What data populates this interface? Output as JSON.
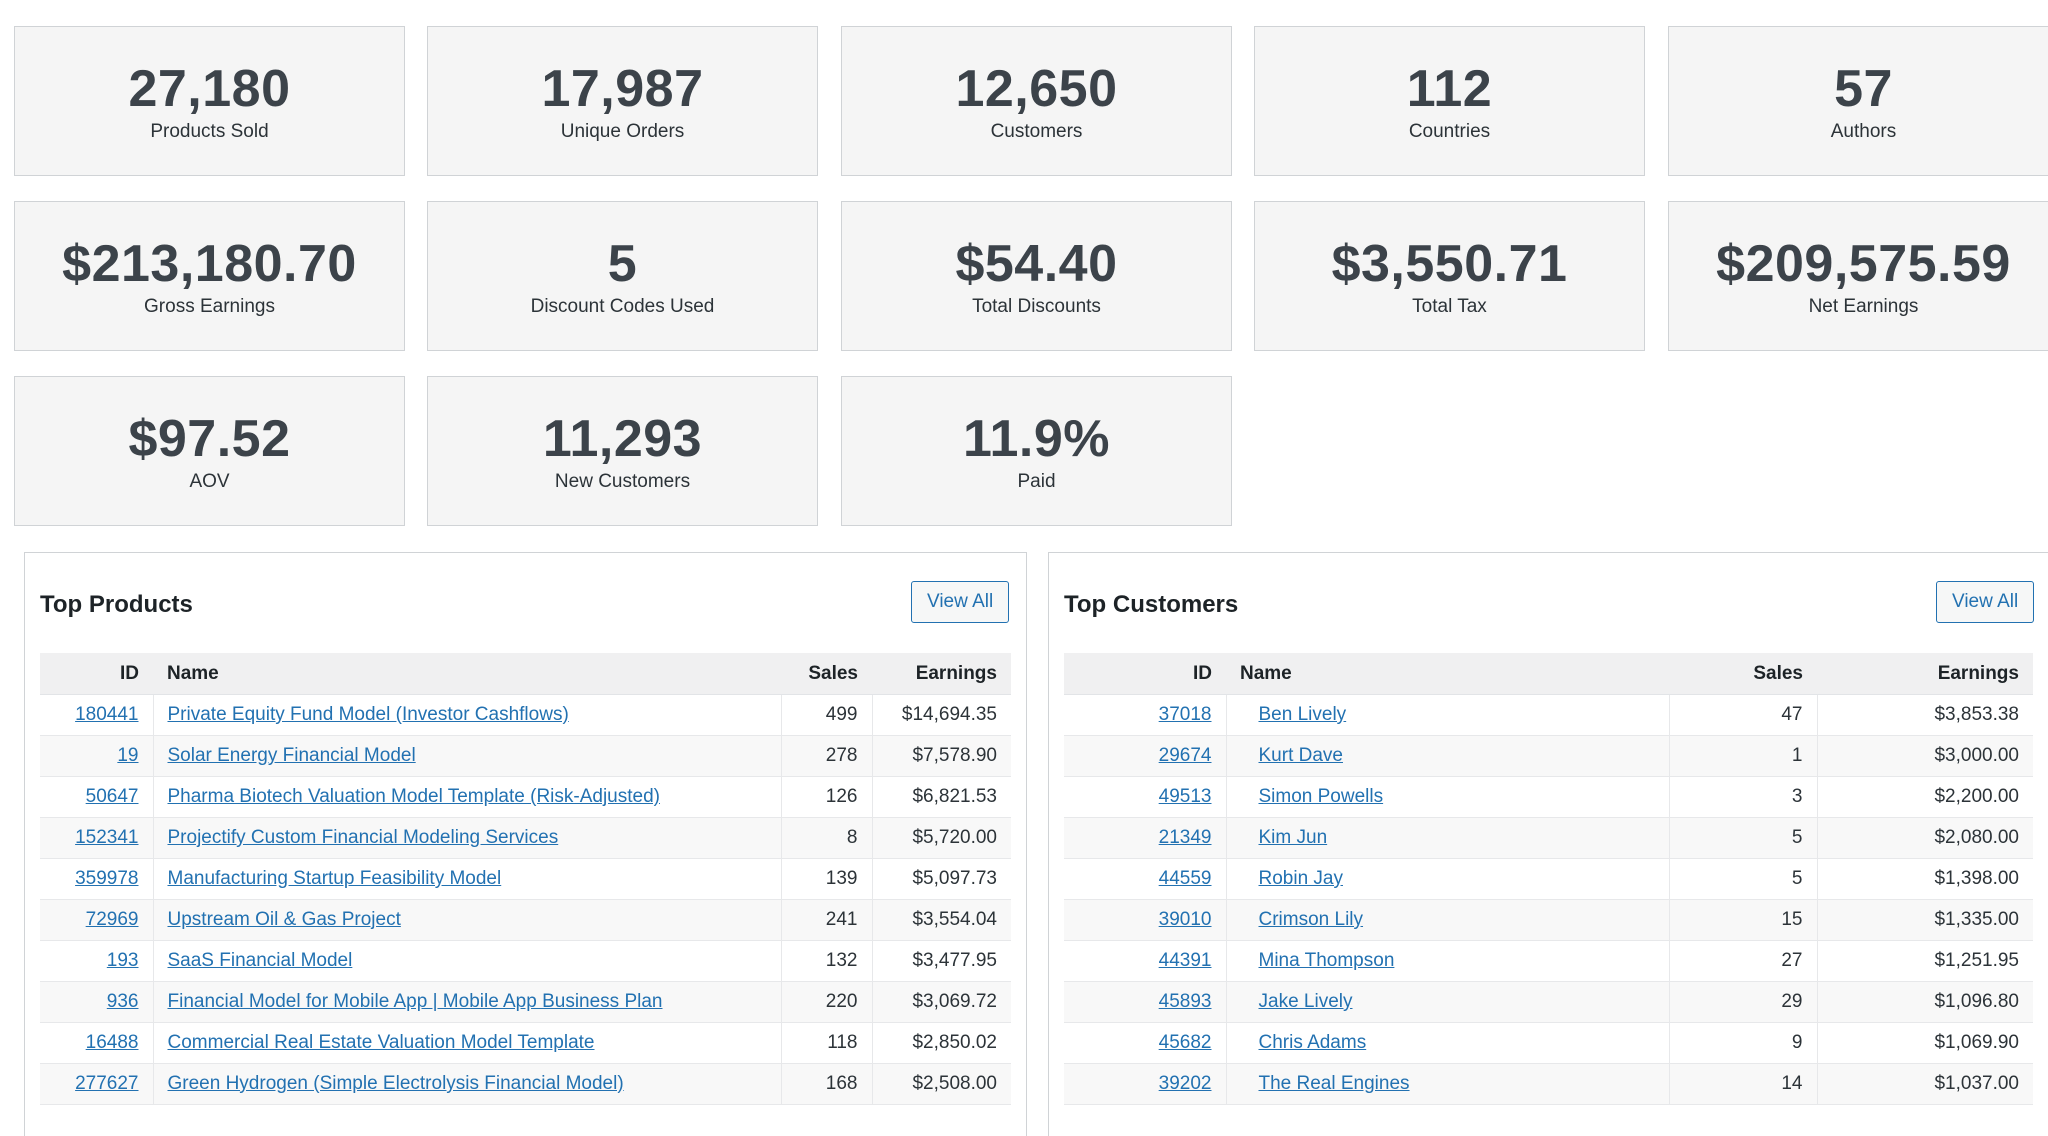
{
  "stats": [
    {
      "value": "27,180",
      "label": "Products Sold"
    },
    {
      "value": "17,987",
      "label": "Unique Orders"
    },
    {
      "value": "12,650",
      "label": "Customers"
    },
    {
      "value": "112",
      "label": "Countries"
    },
    {
      "value": "57",
      "label": "Authors"
    },
    {
      "value": "$213,180.70",
      "label": "Gross Earnings"
    },
    {
      "value": "5",
      "label": "Discount Codes Used"
    },
    {
      "value": "$54.40",
      "label": "Total Discounts"
    },
    {
      "value": "$3,550.71",
      "label": "Total Tax"
    },
    {
      "value": "$209,575.59",
      "label": "Net Earnings"
    },
    {
      "value": "$97.52",
      "label": "AOV"
    },
    {
      "value": "11,293",
      "label": "New Customers"
    },
    {
      "value": "11.9%",
      "label": "Paid"
    }
  ],
  "top_products": {
    "title": "Top Products",
    "view_all_label": "View All",
    "columns": {
      "id": "ID",
      "name": "Name",
      "sales": "Sales",
      "earnings": "Earnings"
    },
    "rows": [
      {
        "id": "180441",
        "name": "Private Equity Fund Model (Investor Cashflows)",
        "sales": "499",
        "earnings": "$14,694.35"
      },
      {
        "id": "19",
        "name": "Solar Energy Financial Model",
        "sales": "278",
        "earnings": "$7,578.90"
      },
      {
        "id": "50647",
        "name": "Pharma Biotech Valuation Model Template (Risk-Adjusted)",
        "sales": "126",
        "earnings": "$6,821.53"
      },
      {
        "id": "152341",
        "name": "Projectify Custom Financial Modeling Services",
        "sales": "8",
        "earnings": "$5,720.00"
      },
      {
        "id": "359978",
        "name": "Manufacturing Startup Feasibility Model",
        "sales": "139",
        "earnings": "$5,097.73"
      },
      {
        "id": "72969",
        "name": "Upstream Oil & Gas Project",
        "sales": "241",
        "earnings": "$3,554.04"
      },
      {
        "id": "193",
        "name": "SaaS Financial Model",
        "sales": "132",
        "earnings": "$3,477.95"
      },
      {
        "id": "936",
        "name": "Financial Model for Mobile App | Mobile App Business Plan",
        "sales": "220",
        "earnings": "$3,069.72"
      },
      {
        "id": "16488",
        "name": "Commercial Real Estate Valuation Model Template",
        "sales": "118",
        "earnings": "$2,850.02"
      },
      {
        "id": "277627",
        "name": "Green Hydrogen (Simple Electrolysis Financial Model)",
        "sales": "168",
        "earnings": "$2,508.00"
      }
    ]
  },
  "top_customers": {
    "title": "Top Customers",
    "view_all_label": "View All",
    "columns": {
      "id": "ID",
      "name": "Name",
      "sales": "Sales",
      "earnings": "Earnings"
    },
    "rows": [
      {
        "id": "37018",
        "name": "Ben Lively",
        "sales": "47",
        "earnings": "$3,853.38"
      },
      {
        "id": "29674",
        "name": "Kurt Dave",
        "sales": "1",
        "earnings": "$3,000.00"
      },
      {
        "id": "49513",
        "name": "Simon Powells ",
        "sales": "3",
        "earnings": "$2,200.00"
      },
      {
        "id": "21349",
        "name": "Kim Jun",
        "sales": "5",
        "earnings": "$2,080.00"
      },
      {
        "id": "44559",
        "name": "Robin Jay",
        "sales": "5",
        "earnings": "$1,398.00"
      },
      {
        "id": "39010",
        "name": "Crimson Lily ",
        "sales": "15",
        "earnings": "$1,335.00"
      },
      {
        "id": "44391",
        "name": "Mina Thompson",
        "sales": "27",
        "earnings": "$1,251.95"
      },
      {
        "id": "45893",
        "name": "Jake Lively",
        "sales": "29",
        "earnings": "$1,096.80"
      },
      {
        "id": "45682",
        "name": "Chris Adams",
        "sales": "9",
        "earnings": "$1,069.90"
      },
      {
        "id": "39202",
        "name": "The Real Engines",
        "sales": "14",
        "earnings": "$1,037.00"
      }
    ]
  }
}
